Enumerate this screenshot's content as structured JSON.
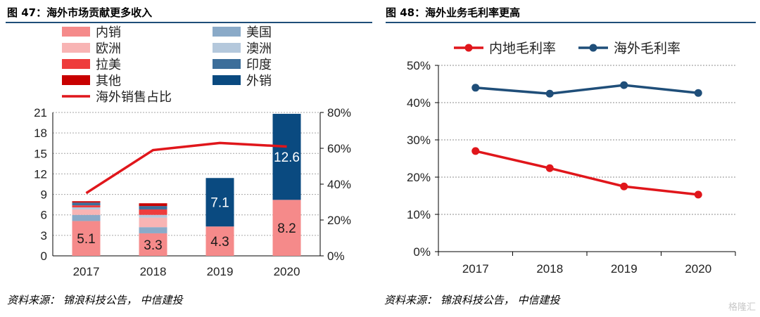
{
  "figure_left": {
    "title": "图 47：海外市场贡献更多收入",
    "source": "资料来源：  锦浪科技公告，  中信建投"
  },
  "figure_right": {
    "title": "图 48：海外业务毛利率更高",
    "source": "资料来源：  锦浪科技公告，  中信建投"
  },
  "watermark": "格隆汇",
  "chart_data": [
    {
      "type": "bar",
      "stacked": true,
      "title": "图 47：海外市场贡献更多收入",
      "categories": [
        "2017",
        "2018",
        "2019",
        "2020"
      ],
      "ylim": [
        0,
        21
      ],
      "yticks": [
        0,
        3,
        6,
        9,
        12,
        15,
        18,
        21
      ],
      "y2lim": [
        0,
        0.8
      ],
      "y2ticks": [
        "0%",
        "20%",
        "40%",
        "60%",
        "80%"
      ],
      "grid": true,
      "legend_position": "top-left",
      "series": [
        {
          "name": "内销",
          "color": "#f58a8a",
          "values": [
            5.1,
            3.3,
            4.3,
            8.2
          ],
          "show_labels": true
        },
        {
          "name": "美国",
          "color": "#8aaac8",
          "values": [
            0.9,
            0.9,
            0.0,
            0.0
          ]
        },
        {
          "name": "欧洲",
          "color": "#f8b4b4",
          "values": [
            0.8,
            1.4,
            0.0,
            0.0
          ]
        },
        {
          "name": "澳洲",
          "color": "#b4c8dc",
          "values": [
            0.3,
            0.4,
            0.0,
            0.0
          ]
        },
        {
          "name": "拉美",
          "color": "#ee3c3c",
          "values": [
            0.3,
            0.8,
            0.0,
            0.0
          ]
        },
        {
          "name": "印度",
          "color": "#3c6e9a",
          "values": [
            0.4,
            0.5,
            0.0,
            0.0
          ]
        },
        {
          "name": "其他",
          "color": "#c80000",
          "values": [
            0.2,
            0.4,
            0.0,
            0.0
          ]
        },
        {
          "name": "外销",
          "color": "#0a4a80",
          "values": [
            0.0,
            0.0,
            7.1,
            12.6
          ],
          "show_labels": true
        }
      ],
      "line_series": {
        "name": "海外销售占比",
        "color": "#e0161b",
        "axis": "right",
        "values": [
          0.35,
          0.59,
          0.63,
          0.61
        ]
      }
    },
    {
      "type": "line",
      "title": "图 48：海外业务毛利率更高",
      "categories": [
        "2017",
        "2018",
        "2019",
        "2020"
      ],
      "ylim": [
        0,
        0.5
      ],
      "yticks": [
        "0%",
        "10%",
        "20%",
        "30%",
        "40%",
        "50%"
      ],
      "grid": true,
      "legend_position": "top",
      "series": [
        {
          "name": "内地毛利率",
          "color": "#e0161b",
          "values": [
            0.27,
            0.224,
            0.175,
            0.153
          ]
        },
        {
          "name": "海外毛利率",
          "color": "#1f4e79",
          "values": [
            0.44,
            0.424,
            0.447,
            0.426
          ]
        }
      ]
    }
  ]
}
